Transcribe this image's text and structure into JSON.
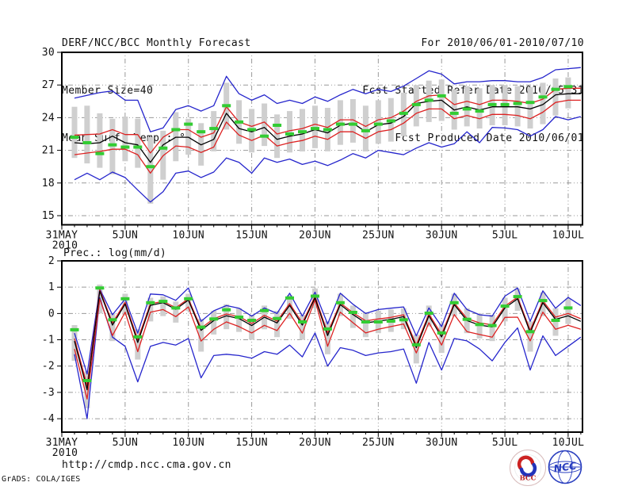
{
  "header": {
    "left": [
      "DERF/NCC/BCC Monthly Forecast",
      "Member Size=40",
      "Mean Surf. Temp.: °C"
    ],
    "right": [
      "For 2010/06/01-2010/07/10",
      "Fcst Started Refer Date 2010/05/31",
      "Fcst Produced Date 2010/06/01"
    ]
  },
  "footer": {
    "url": "http://cmdp.ncc.cma.gov.cn",
    "credit": "GrADS: COLA/IGES",
    "logo_bcc_label": "BCC",
    "logo_ncc_label": "NCC"
  },
  "chart_data": [
    {
      "type": "line",
      "name": "temperature-chart",
      "title": "Mean Surf. Temp.: °C",
      "x_tick_labels": [
        "31MAY",
        "5JUN",
        "10JUN",
        "15JUN",
        "20JUN",
        "25JUN",
        "30JUN",
        "5JUL",
        "10JUL"
      ],
      "x_tick_days": [
        0,
        5,
        10,
        15,
        20,
        25,
        30,
        35,
        40
      ],
      "x_year_label": "2010",
      "x_range_days": [
        0,
        41.13
      ],
      "ylim": [
        14.16,
        30
      ],
      "yticks": [
        15,
        18,
        21,
        24,
        27,
        30
      ],
      "grid": true,
      "legend": "none",
      "series": [
        {
          "name": "envelope-max-blue",
          "color": "#2525cc",
          "values": [
            25.8,
            26.05,
            26.3,
            26.45,
            25.6,
            25.6,
            22.7,
            23.05,
            24.75,
            25.1,
            24.6,
            25.1,
            27.8,
            26.2,
            25.6,
            26.1,
            25.3,
            25.6,
            25.3,
            25.9,
            25.5,
            26.1,
            26.6,
            26.2,
            26.6,
            26.4,
            26.9,
            27.6,
            28.3,
            28.0,
            27.1,
            27.3,
            27.3,
            27.4,
            27.4,
            27.3,
            27.3,
            27.7,
            28.4,
            28.5,
            28.6
          ]
        },
        {
          "name": "spread-upper-red",
          "color": "#dd2222",
          "values": [
            22.4,
            22.45,
            22.5,
            22.9,
            22.45,
            22.45,
            20.75,
            22.2,
            22.9,
            22.9,
            22.2,
            22.6,
            25.0,
            23.6,
            23.2,
            23.6,
            22.5,
            22.8,
            23.0,
            23.4,
            23.1,
            23.8,
            23.8,
            23.2,
            23.8,
            24.0,
            24.6,
            25.5,
            26.0,
            26.1,
            25.2,
            25.5,
            25.2,
            25.6,
            25.6,
            25.5,
            25.3,
            25.7,
            26.6,
            26.7,
            26.7
          ]
        },
        {
          "name": "ensemble-mean-black",
          "color": "#000000",
          "values": [
            21.7,
            21.6,
            21.7,
            22.3,
            21.7,
            21.5,
            19.9,
            21.5,
            22.2,
            22.2,
            21.5,
            22.0,
            24.4,
            23.0,
            22.7,
            23.1,
            22.0,
            22.3,
            22.5,
            22.9,
            22.6,
            23.3,
            23.5,
            22.7,
            23.35,
            23.5,
            24.1,
            25.3,
            25.5,
            25.6,
            24.7,
            25.0,
            24.7,
            25.0,
            25.0,
            25.0,
            24.8,
            25.2,
            26.1,
            26.2,
            26.2
          ]
        },
        {
          "name": "spread-lower-red",
          "color": "#dd2222",
          "values": [
            20.6,
            20.75,
            20.9,
            21.1,
            21.1,
            20.6,
            18.9,
            20.5,
            21.4,
            21.3,
            20.8,
            21.3,
            23.6,
            22.4,
            21.9,
            22.4,
            21.4,
            21.7,
            21.9,
            22.3,
            22.0,
            22.7,
            22.7,
            22.1,
            22.7,
            22.9,
            23.5,
            24.4,
            24.8,
            24.8,
            23.9,
            24.2,
            23.9,
            24.3,
            24.3,
            24.2,
            23.9,
            24.5,
            25.4,
            25.6,
            25.6
          ]
        },
        {
          "name": "envelope-min-blue",
          "color": "#2525cc",
          "values": [
            18.3,
            18.9,
            18.3,
            19.0,
            18.5,
            17.35,
            16.25,
            17.2,
            18.9,
            19.1,
            18.5,
            19.0,
            20.3,
            19.9,
            18.9,
            20.3,
            19.9,
            20.2,
            19.7,
            20.0,
            19.6,
            20.1,
            20.7,
            20.3,
            21.0,
            20.8,
            20.6,
            21.2,
            21.7,
            21.3,
            21.6,
            22.7,
            21.7,
            23.1,
            23.05,
            22.9,
            22.3,
            22.9,
            24.1,
            23.8,
            24.1
          ]
        }
      ],
      "bars": {
        "name": "member-spread-bar",
        "color": "#cfcfcf",
        "hi": [
          25.0,
          25.1,
          24.4,
          23.9,
          24.1,
          23.9,
          22.2,
          22.8,
          24.5,
          23.9,
          23.5,
          24.6,
          27.2,
          25.6,
          24.8,
          25.3,
          24.3,
          24.6,
          24.8,
          25.1,
          24.9,
          25.6,
          25.7,
          25.1,
          25.6,
          25.8,
          26.3,
          27.0,
          27.4,
          27.5,
          26.6,
          26.9,
          26.7,
          27.0,
          27.0,
          26.9,
          26.8,
          27.2,
          27.6,
          27.7
        ],
        "lo": [
          20.3,
          19.8,
          19.4,
          18.8,
          20.0,
          19.4,
          16.1,
          18.3,
          20.0,
          20.6,
          19.6,
          20.9,
          22.9,
          21.6,
          20.8,
          21.4,
          20.3,
          20.8,
          20.9,
          21.2,
          20.9,
          21.5,
          21.7,
          20.9,
          21.6,
          21.8,
          22.3,
          23.2,
          23.6,
          23.7,
          22.9,
          23.2,
          23.0,
          23.3,
          23.3,
          23.2,
          23.0,
          23.4,
          24.2,
          24.85
        ]
      },
      "markers": {
        "name": "daily-green-dash",
        "color": "#33cc33",
        "values": [
          22.2,
          21.7,
          20.7,
          21.5,
          21.3,
          21.3,
          19.5,
          21.2,
          22.9,
          23.4,
          22.7,
          23.0,
          25.1,
          23.6,
          22.9,
          22.3,
          23.3,
          22.5,
          22.7,
          23.0,
          22.9,
          23.4,
          23.4,
          22.8,
          23.4,
          23.7,
          24.4,
          25.2,
          25.6,
          26.0,
          24.4,
          24.8,
          24.6,
          25.2,
          25.2,
          25.3,
          25.4,
          25.9,
          26.6,
          26.85
        ]
      }
    },
    {
      "type": "line",
      "name": "precipitation-chart",
      "title": "Prec.: log(mm/d)",
      "x_tick_labels": [
        "31MAY",
        "5JUN",
        "10JUN",
        "15JUN",
        "20JUN",
        "25JUN",
        "30JUN",
        "5JUL",
        "10JUL"
      ],
      "x_tick_days": [
        0,
        5,
        10,
        15,
        20,
        25,
        30,
        35,
        40
      ],
      "x_year_label": "2010",
      "x_range_days": [
        0,
        41.13
      ],
      "ylim": [
        -4.51,
        2
      ],
      "yticks": [
        -4,
        -3,
        -2,
        -1,
        0,
        1,
        2
      ],
      "grid": true,
      "legend": "none",
      "series": [
        {
          "name": "envelope-max-blue",
          "color": "#2525cc",
          "values": [
            -0.75,
            -2.3,
            0.93,
            -0.05,
            0.55,
            -0.75,
            0.74,
            0.71,
            0.5,
            0.97,
            -0.3,
            0.1,
            0.3,
            0.2,
            -0.1,
            0.21,
            0.0,
            0.77,
            -0.1,
            0.81,
            -0.4,
            0.77,
            0.35,
            0.0,
            0.15,
            0.2,
            0.25,
            -0.85,
            0.21,
            -0.5,
            0.77,
            0.15,
            -0.05,
            -0.1,
            0.66,
            0.97,
            -0.3,
            0.86,
            0.2,
            0.61,
            0.3
          ]
        },
        {
          "name": "spread-upper-red",
          "color": "#dd2222",
          "values": [
            -0.95,
            -2.75,
            0.9,
            -0.36,
            0.42,
            -1.0,
            0.37,
            0.46,
            0.22,
            0.56,
            -0.56,
            -0.2,
            -0.02,
            -0.12,
            -0.38,
            -0.07,
            -0.29,
            0.38,
            -0.36,
            0.65,
            -0.74,
            0.4,
            0.03,
            -0.28,
            -0.21,
            -0.15,
            -0.05,
            -1.2,
            -0.02,
            -0.8,
            0.4,
            -0.19,
            -0.36,
            -0.43,
            0.28,
            0.62,
            -0.64,
            0.48,
            -0.14,
            0.0,
            -0.2
          ]
        },
        {
          "name": "ensemble-mean-black",
          "color": "#000000",
          "values": [
            -1.05,
            -2.9,
            0.85,
            -0.44,
            0.36,
            -1.1,
            0.31,
            0.41,
            0.16,
            0.51,
            -0.64,
            -0.27,
            -0.09,
            -0.19,
            -0.46,
            -0.14,
            -0.36,
            0.31,
            -0.44,
            0.6,
            -0.84,
            0.34,
            -0.04,
            -0.36,
            -0.29,
            -0.22,
            -0.12,
            -1.3,
            -0.09,
            -0.89,
            0.34,
            -0.27,
            -0.44,
            -0.51,
            0.21,
            0.56,
            -0.72,
            0.41,
            -0.22,
            -0.09,
            -0.3
          ]
        },
        {
          "name": "spread-lower-red",
          "color": "#dd2222",
          "values": [
            -1.35,
            -3.25,
            0.55,
            -0.84,
            0.05,
            -1.45,
            0.05,
            0.15,
            -0.12,
            0.25,
            -1.05,
            -0.6,
            -0.32,
            -0.5,
            -0.74,
            -0.45,
            -0.65,
            0.01,
            -0.75,
            0.51,
            -1.25,
            0.05,
            -0.35,
            -0.74,
            -0.6,
            -0.5,
            -0.4,
            -1.5,
            -0.35,
            -1.2,
            -0.04,
            -0.69,
            -0.8,
            -0.9,
            -0.15,
            -0.14,
            -1.04,
            0.05,
            -0.6,
            -0.45,
            -0.6
          ]
        },
        {
          "name": "envelope-min-blue",
          "color": "#2525cc",
          "values": [
            -1.55,
            -4.0,
            0.6,
            -0.9,
            -1.25,
            -2.6,
            -1.25,
            -1.1,
            -1.2,
            -0.95,
            -2.45,
            -1.6,
            -1.55,
            -1.6,
            -1.7,
            -1.45,
            -1.55,
            -1.2,
            -1.65,
            -0.74,
            -2.0,
            -1.3,
            -1.4,
            -1.6,
            -1.5,
            -1.45,
            -1.35,
            -2.65,
            -1.1,
            -2.15,
            -0.95,
            -1.04,
            -1.35,
            -1.8,
            -1.1,
            -0.55,
            -2.15,
            -0.85,
            -1.6,
            -1.25,
            -0.9
          ]
        }
      ],
      "bars": {
        "name": "member-spread-bar",
        "color": "#cfcfcf",
        "hi": [
          -0.44,
          -2.2,
          1.1,
          0.0,
          0.75,
          -0.6,
          0.6,
          0.65,
          0.45,
          0.75,
          -0.2,
          0.1,
          0.35,
          0.2,
          -0.05,
          0.3,
          0.1,
          0.7,
          -0.05,
          0.95,
          -0.3,
          0.75,
          0.3,
          0.05,
          0.1,
          0.15,
          0.2,
          -0.8,
          0.3,
          -0.4,
          0.75,
          0.2,
          0.0,
          -0.05,
          0.6,
          0.95,
          -0.3,
          0.8,
          0.2,
          0.55
        ],
        "lo": [
          -1.8,
          -3.6,
          0.0,
          -1.05,
          -0.05,
          -1.75,
          -0.3,
          -0.1,
          -0.35,
          0.1,
          -1.45,
          -0.8,
          -0.6,
          -0.7,
          -1.0,
          -0.6,
          -0.9,
          -0.2,
          -1.0,
          0.2,
          -1.55,
          -0.1,
          -0.55,
          -0.9,
          -0.75,
          -0.7,
          -0.6,
          -1.9,
          -0.5,
          -1.5,
          -0.1,
          -0.75,
          -0.95,
          -1.05,
          -0.3,
          0.1,
          -1.45,
          -0.1,
          -0.85,
          -0.4
        ]
      },
      "markers": {
        "name": "daily-green-dash",
        "color": "#33cc33",
        "values": [
          -0.62,
          -2.55,
          0.97,
          -0.24,
          0.56,
          -0.89,
          0.41,
          0.46,
          0.21,
          0.56,
          -0.52,
          -0.21,
          0.14,
          -0.14,
          -0.26,
          0.11,
          -0.19,
          0.59,
          -0.32,
          0.66,
          -0.59,
          0.41,
          0.04,
          -0.32,
          -0.32,
          -0.29,
          -0.24,
          -1.19,
          0.01,
          -0.74,
          0.41,
          -0.22,
          -0.42,
          -0.46,
          0.28,
          0.64,
          -0.69,
          0.49,
          -0.26,
          0.21
        ]
      }
    }
  ]
}
